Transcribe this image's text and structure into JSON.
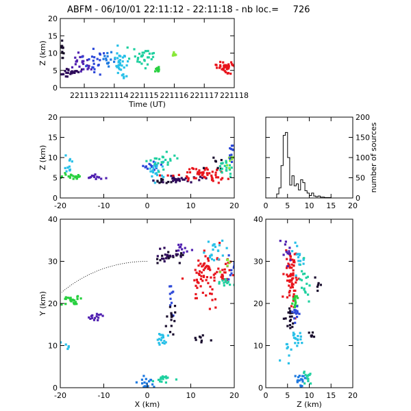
{
  "title": "ABFM - 06/10/01 22:11:12 - 22:11:18 - nb loc.=     726",
  "chart_data": [
    {
      "id": "time-height",
      "type": "scatter",
      "xlabel": "Time (UT)",
      "ylabel": "Z (km)",
      "xlim": [
        221112.2,
        221118.0
      ],
      "ylim": [
        0,
        20
      ],
      "xticks": [
        221113,
        221114,
        221115,
        221116,
        221117,
        221118
      ],
      "xtick_labels": [
        "221113",
        "221114",
        "221115",
        "221116",
        "221117",
        "221118"
      ],
      "yticks": [
        0,
        5,
        10,
        15,
        20
      ],
      "ytick_labels": [
        "0",
        "5",
        "10",
        "15",
        "20"
      ],
      "clusters": [
        {
          "color": "#1a0e2e",
          "cx": 221112.25,
          "cy": 10.5,
          "sx": 0.05,
          "sy": 1.6,
          "n": 14
        },
        {
          "color": "#2e0a5a",
          "cx": 221112.55,
          "cy": 4.5,
          "sx": 0.15,
          "sy": 0.6,
          "n": 24
        },
        {
          "color": "#5020b0",
          "cx": 221112.9,
          "cy": 7.0,
          "sx": 0.18,
          "sy": 2.2,
          "n": 22
        },
        {
          "color": "#2c48d8",
          "cx": 221113.4,
          "cy": 7.5,
          "sx": 0.2,
          "sy": 2.0,
          "n": 20
        },
        {
          "color": "#1e7ae0",
          "cx": 221113.8,
          "cy": 8.0,
          "sx": 0.1,
          "sy": 0.8,
          "n": 14
        },
        {
          "color": "#28c0e8",
          "cx": 221114.2,
          "cy": 6.5,
          "sx": 0.12,
          "sy": 2.6,
          "n": 34
        },
        {
          "color": "#20d0a0",
          "cx": 221114.9,
          "cy": 9.0,
          "sx": 0.22,
          "sy": 1.4,
          "n": 30
        },
        {
          "color": "#28d040",
          "cx": 221115.45,
          "cy": 5.3,
          "sx": 0.05,
          "sy": 0.4,
          "n": 12
        },
        {
          "color": "#88e838",
          "cx": 221116.0,
          "cy": 9.5,
          "sx": 0.05,
          "sy": 0.5,
          "n": 6
        },
        {
          "color": "#e8141c",
          "cx": 221117.75,
          "cy": 5.8,
          "sx": 0.15,
          "sy": 0.8,
          "n": 44
        }
      ]
    },
    {
      "id": "x-height",
      "type": "scatter",
      "xlabel": "",
      "ylabel": "Z (km)",
      "xlim": [
        -20,
        20
      ],
      "ylim": [
        0,
        20
      ],
      "xticks": [
        -20,
        -10,
        0,
        10,
        20
      ],
      "xtick_labels": [
        "-20",
        "-10",
        "0",
        "10",
        "20"
      ],
      "yticks": [
        0,
        5,
        10,
        15,
        20
      ],
      "ytick_labels": [
        "0",
        "5",
        "10",
        "15",
        "20"
      ],
      "clusters": [
        {
          "color": "#28d040",
          "cx": -17.5,
          "cy": 5.2,
          "sx": 1.2,
          "sy": 0.4,
          "n": 20
        },
        {
          "color": "#28c0e8",
          "cx": -18.2,
          "cy": 9.0,
          "sx": 0.6,
          "sy": 1.8,
          "n": 12
        },
        {
          "color": "#5020b0",
          "cx": -12.5,
          "cy": 5.0,
          "sx": 1.2,
          "sy": 0.35,
          "n": 14
        },
        {
          "color": "#2c48d8",
          "cx": 0.8,
          "cy": 7.8,
          "sx": 1.0,
          "sy": 0.5,
          "n": 14
        },
        {
          "color": "#28c0e8",
          "cx": 2.0,
          "cy": 6.0,
          "sx": 1.0,
          "sy": 1.5,
          "n": 22
        },
        {
          "color": "#20d0a0",
          "cx": 4.0,
          "cy": 9.0,
          "sx": 1.6,
          "sy": 1.2,
          "n": 22
        },
        {
          "color": "#1a0e2e",
          "cx": 3.5,
          "cy": 4.0,
          "sx": 0.7,
          "sy": 0.5,
          "n": 10
        },
        {
          "color": "#2e0a5a",
          "cx": 8.0,
          "cy": 4.6,
          "sx": 2.5,
          "sy": 0.5,
          "n": 28
        },
        {
          "color": "#e8141c",
          "cx": 13.0,
          "cy": 5.8,
          "sx": 3.0,
          "sy": 0.9,
          "n": 56
        },
        {
          "color": "#1a0e2e",
          "cx": 16.5,
          "cy": 9.0,
          "sx": 1.2,
          "sy": 1.0,
          "n": 8
        },
        {
          "color": "#20d0a0",
          "cx": 18.2,
          "cy": 7.8,
          "sx": 0.9,
          "sy": 1.2,
          "n": 18
        },
        {
          "color": "#88e838",
          "cx": 19.2,
          "cy": 9.5,
          "sx": 0.5,
          "sy": 0.8,
          "n": 8
        },
        {
          "color": "#2c48d8",
          "cx": 19.5,
          "cy": 10.8,
          "sx": 0.3,
          "sy": 1.2,
          "n": 10
        }
      ]
    },
    {
      "id": "histogram",
      "type": "bar",
      "xlabel": "",
      "ylabel": "number of sources",
      "xlim": [
        0,
        20
      ],
      "ylim": [
        0,
        200
      ],
      "xticks": [
        0,
        5,
        10,
        15,
        20
      ],
      "xtick_labels": [
        "0",
        "5",
        "10",
        "15",
        "20"
      ],
      "yticks": [
        0,
        50,
        100,
        150,
        200
      ],
      "ytick_labels": [
        "0",
        "50",
        "100",
        "150",
        "200"
      ],
      "bin_width": 0.5,
      "bin_start": 2.5,
      "counts": [
        10,
        25,
        80,
        155,
        162,
        100,
        32,
        55,
        30,
        35,
        20,
        45,
        38,
        18,
        12,
        6,
        12,
        5,
        3,
        5,
        2,
        2,
        1,
        1,
        1
      ]
    },
    {
      "id": "x-y",
      "type": "scatter",
      "xlabel": "X (km)",
      "ylabel": "Y (km)",
      "xlim": [
        -20,
        20
      ],
      "ylim": [
        0,
        40
      ],
      "xticks": [
        -20,
        -10,
        0,
        10,
        20
      ],
      "xtick_labels": [
        "-20",
        "-10",
        "0",
        "10",
        "20"
      ],
      "yticks": [
        0,
        10,
        20,
        30,
        40
      ],
      "ytick_labels": [
        "0",
        "10",
        "20",
        "30",
        "40"
      ],
      "range_arc": {
        "cx": 0,
        "cy": 0,
        "r": 30,
        "from_deg": 90,
        "to_deg": 131
      },
      "clusters": [
        {
          "color": "#28d040",
          "cx": -17.5,
          "cy": 20.8,
          "sx": 1.0,
          "sy": 0.8,
          "n": 26
        },
        {
          "color": "#5020b0",
          "cx": -12.0,
          "cy": 16.8,
          "sx": 1.0,
          "sy": 0.4,
          "n": 14
        },
        {
          "color": "#28c0e8",
          "cx": -18.0,
          "cy": 10.0,
          "sx": 0.8,
          "sy": 0.8,
          "n": 5
        },
        {
          "color": "#1a0e2e",
          "cx": 5.5,
          "cy": 31.0,
          "sx": 1.6,
          "sy": 0.9,
          "n": 18
        },
        {
          "color": "#5020b0",
          "cx": 8.0,
          "cy": 33.0,
          "sx": 0.9,
          "sy": 0.5,
          "n": 10
        },
        {
          "color": "#2e0a5a",
          "cx": 5.0,
          "cy": 31.5,
          "sx": 2.0,
          "sy": 1.0,
          "n": 16
        },
        {
          "color": "#2c48d8",
          "cx": 5.5,
          "cy": 20.5,
          "sx": 0.3,
          "sy": 2.0,
          "n": 10
        },
        {
          "color": "#1a0e2e",
          "cx": 5.5,
          "cy": 16.0,
          "sx": 0.4,
          "sy": 1.8,
          "n": 14
        },
        {
          "color": "#28c0e8",
          "cx": 3.5,
          "cy": 11.5,
          "sx": 0.8,
          "sy": 0.8,
          "n": 16
        },
        {
          "color": "#1e7ae0",
          "cx": -0.5,
          "cy": 1.2,
          "sx": 0.9,
          "sy": 0.8,
          "n": 18
        },
        {
          "color": "#20d0a0",
          "cx": 3.5,
          "cy": 2.0,
          "sx": 1.2,
          "sy": 0.5,
          "n": 16
        },
        {
          "color": "#1a0e2e",
          "cx": 12.5,
          "cy": 11.8,
          "sx": 0.9,
          "sy": 0.5,
          "n": 8
        },
        {
          "color": "#e8141c",
          "cx": 13.5,
          "cy": 26.0,
          "sx": 2.0,
          "sy": 3.0,
          "n": 70
        },
        {
          "color": "#e8141c",
          "cx": 17.5,
          "cy": 28.0,
          "sx": 1.2,
          "sy": 1.5,
          "n": 24
        },
        {
          "color": "#28c0e8",
          "cx": 15.5,
          "cy": 32.0,
          "sx": 1.2,
          "sy": 1.2,
          "n": 20
        },
        {
          "color": "#20d0a0",
          "cx": 18.0,
          "cy": 25.0,
          "sx": 1.0,
          "sy": 0.6,
          "n": 14
        },
        {
          "color": "#88e838",
          "cx": 18.5,
          "cy": 29.0,
          "sx": 0.8,
          "sy": 0.8,
          "n": 6
        },
        {
          "color": "#2c48d8",
          "cx": 19.5,
          "cy": 28.0,
          "sx": 0.4,
          "sy": 2.0,
          "n": 10
        }
      ]
    },
    {
      "id": "z-y",
      "type": "scatter",
      "xlabel": "Z (km)",
      "ylabel": "",
      "xlim": [
        0,
        20
      ],
      "ylim": [
        0,
        40
      ],
      "xticks": [
        0,
        5,
        10,
        15,
        20
      ],
      "xtick_labels": [
        "0",
        "5",
        "10",
        "15",
        "20"
      ],
      "yticks": [
        0,
        10,
        20,
        30,
        40
      ],
      "ytick_labels": [
        "0",
        "10",
        "20",
        "30",
        "40"
      ],
      "clusters": [
        {
          "color": "#e8141c",
          "cx": 5.8,
          "cy": 26.5,
          "sx": 0.8,
          "sy": 3.2,
          "n": 70
        },
        {
          "color": "#28d040",
          "cx": 6.8,
          "cy": 20.8,
          "sx": 0.3,
          "sy": 0.8,
          "n": 14
        },
        {
          "color": "#5020b0",
          "cx": 5.0,
          "cy": 32.5,
          "sx": 0.6,
          "sy": 1.4,
          "n": 12
        },
        {
          "color": "#1a0e2e",
          "cx": 5.5,
          "cy": 16.5,
          "sx": 0.7,
          "sy": 1.5,
          "n": 18
        },
        {
          "color": "#2c48d8",
          "cx": 7.0,
          "cy": 18.0,
          "sx": 0.5,
          "sy": 1.5,
          "n": 14
        },
        {
          "color": "#28c0e8",
          "cx": 7.0,
          "cy": 11.5,
          "sx": 0.7,
          "sy": 0.8,
          "n": 16
        },
        {
          "color": "#20d0a0",
          "cx": 9.0,
          "cy": 26.0,
          "sx": 0.8,
          "sy": 3.0,
          "n": 20
        },
        {
          "color": "#28c0e8",
          "cx": 8.0,
          "cy": 31.0,
          "sx": 1.0,
          "sy": 2.0,
          "n": 14
        },
        {
          "color": "#1a0e2e",
          "cx": 12.0,
          "cy": 24.5,
          "sx": 0.3,
          "sy": 1.0,
          "n": 6
        },
        {
          "color": "#1e7ae0",
          "cx": 8.0,
          "cy": 1.5,
          "sx": 0.5,
          "sy": 1.0,
          "n": 18
        },
        {
          "color": "#20d0a0",
          "cx": 9.5,
          "cy": 2.5,
          "sx": 0.6,
          "sy": 0.8,
          "n": 14
        },
        {
          "color": "#28c0e8",
          "cx": 4.5,
          "cy": 8.0,
          "sx": 0.8,
          "sy": 1.5,
          "n": 8
        },
        {
          "color": "#1a0e2e",
          "cx": 10.5,
          "cy": 12.5,
          "sx": 0.4,
          "sy": 0.5,
          "n": 6
        }
      ]
    }
  ]
}
